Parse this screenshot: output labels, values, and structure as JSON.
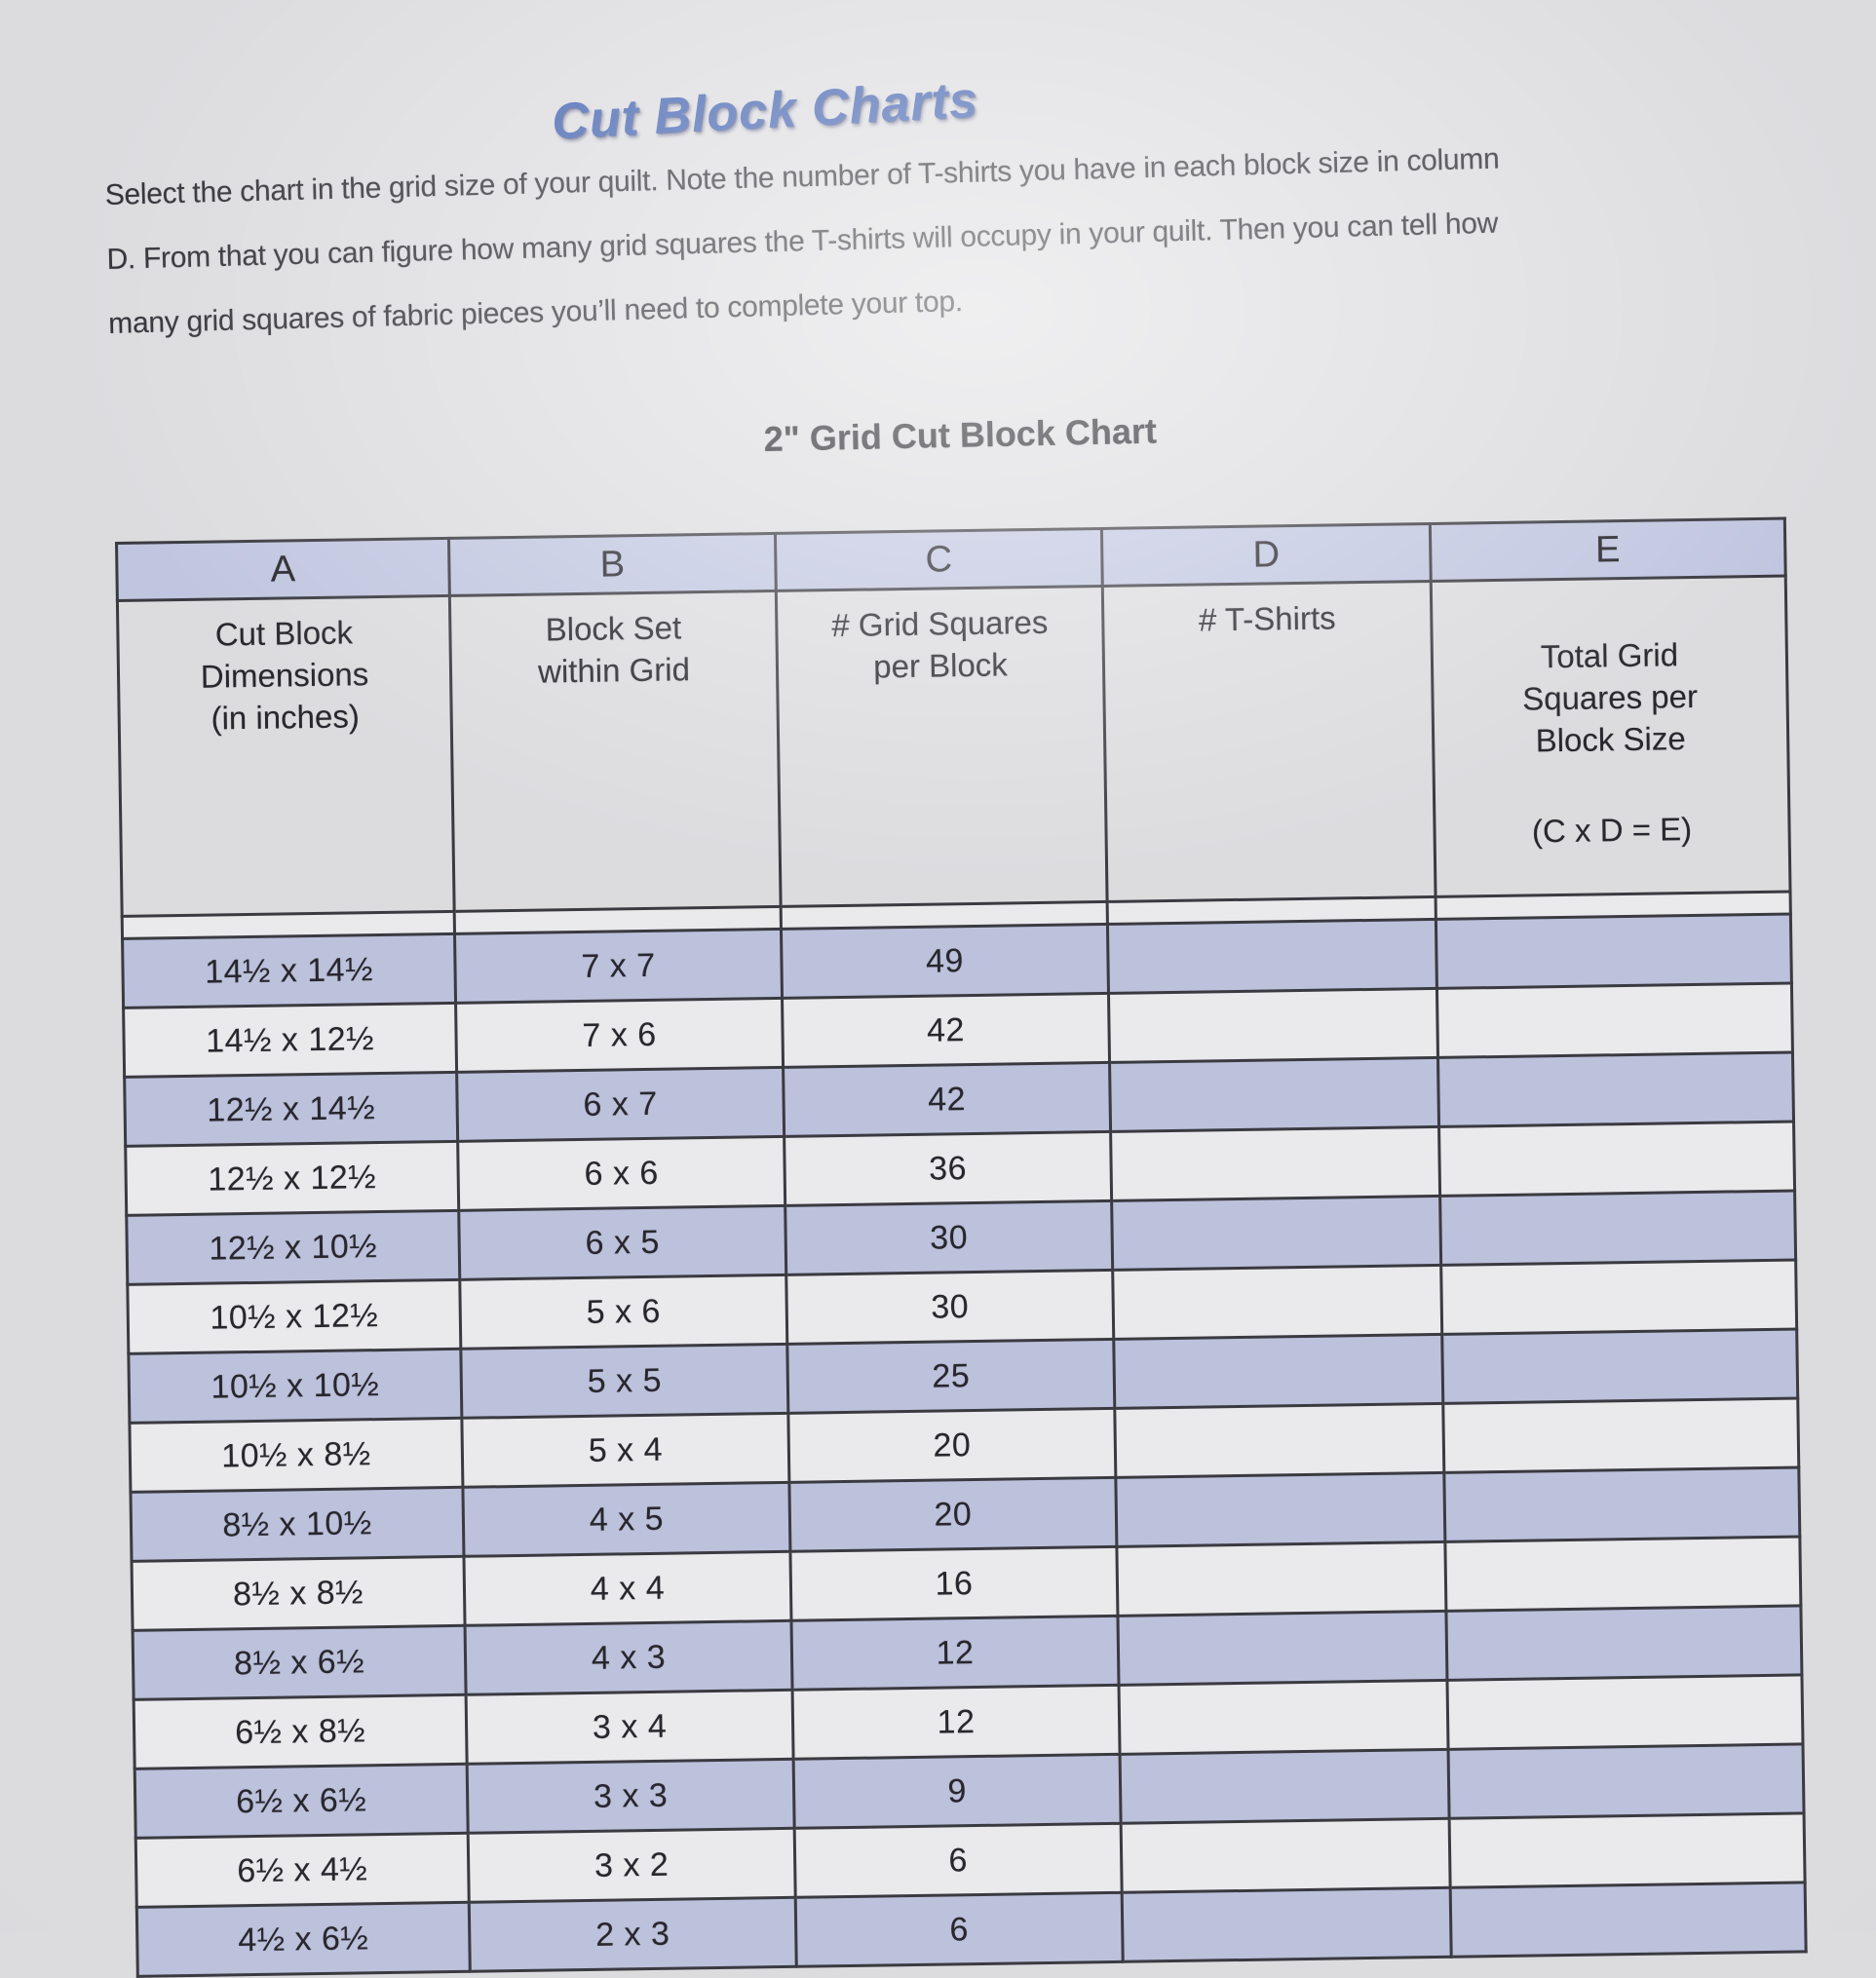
{
  "page": {
    "title": "Cut Block Charts",
    "intro": "Select the chart in the grid size of your quilt. Note the number of T-shirts you have in each block size in column D. From that you can figure how many grid squares the T-shirts will occupy in your quilt. Then you can tell how many grid squares of fabric pieces you’ll need to complete your top.",
    "chart_title": "2\" Grid Cut Block Chart"
  },
  "table": {
    "column_letters": [
      "A",
      "B",
      "C",
      "D",
      "E"
    ],
    "header_a": "Cut Block\nDimensions\n(in inches)",
    "header_b": "Block Set\nwithin Grid",
    "header_c": "# Grid Squares\nper Block",
    "header_d": "# T-Shirts",
    "header_e_main": "Total Grid\nSquares per\nBlock Size",
    "header_e_formula": "(C x D = E)",
    "rows": [
      {
        "dimensions": "14½ x 14½",
        "block_set": "7 x 7",
        "grid_squares": "49",
        "t_shirts": "",
        "total": ""
      },
      {
        "dimensions": "14½ x 12½",
        "block_set": "7 x 6",
        "grid_squares": "42",
        "t_shirts": "",
        "total": ""
      },
      {
        "dimensions": "12½ x 14½",
        "block_set": "6 x 7",
        "grid_squares": "42",
        "t_shirts": "",
        "total": ""
      },
      {
        "dimensions": "12½ x 12½",
        "block_set": "6 x 6",
        "grid_squares": "36",
        "t_shirts": "",
        "total": ""
      },
      {
        "dimensions": "12½ x 10½",
        "block_set": "6 x 5",
        "grid_squares": "30",
        "t_shirts": "",
        "total": ""
      },
      {
        "dimensions": "10½ x 12½",
        "block_set": "5 x 6",
        "grid_squares": "30",
        "t_shirts": "",
        "total": ""
      },
      {
        "dimensions": "10½ x 10½",
        "block_set": "5 x 5",
        "grid_squares": "25",
        "t_shirts": "",
        "total": ""
      },
      {
        "dimensions": "10½ x 8½",
        "block_set": "5 x 4",
        "grid_squares": "20",
        "t_shirts": "",
        "total": ""
      },
      {
        "dimensions": "8½ x 10½",
        "block_set": "4 x 5",
        "grid_squares": "20",
        "t_shirts": "",
        "total": ""
      },
      {
        "dimensions": "8½ x 8½",
        "block_set": "4 x 4",
        "grid_squares": "16",
        "t_shirts": "",
        "total": ""
      },
      {
        "dimensions": "8½ x 6½",
        "block_set": "4 x 3",
        "grid_squares": "12",
        "t_shirts": "",
        "total": ""
      },
      {
        "dimensions": "6½ x 8½",
        "block_set": "3 x 4",
        "grid_squares": "12",
        "t_shirts": "",
        "total": ""
      },
      {
        "dimensions": "6½ x 6½",
        "block_set": "3 x 3",
        "grid_squares": "9",
        "t_shirts": "",
        "total": ""
      },
      {
        "dimensions": "6½ x 4½",
        "block_set": "3 x 2",
        "grid_squares": "6",
        "t_shirts": "",
        "total": ""
      },
      {
        "dimensions": "4½ x 6½",
        "block_set": "2 x 3",
        "grid_squares": "6",
        "t_shirts": "",
        "total": ""
      }
    ]
  },
  "colors": {
    "title_blue": "#4263b0",
    "shaded_row": "#bcc1dc",
    "header_band": "#c1c6e0",
    "grid_line": "#3a3a41",
    "page_background": "#dcdcdf"
  }
}
